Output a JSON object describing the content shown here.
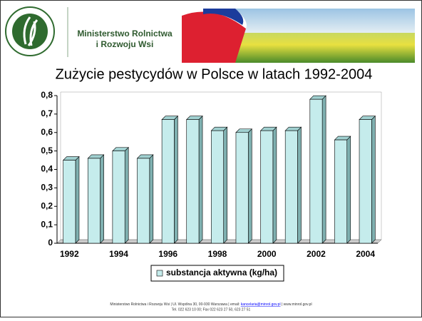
{
  "header": {
    "line1": "Ministerstwo Rolnictwa",
    "line2": "i Rozwoju Wsi"
  },
  "chart_data": {
    "type": "bar3d",
    "title": "Zużycie pestycydów w Polsce w latach 1992-2004",
    "categories": [
      "1992",
      null,
      "1994",
      null,
      "1996",
      null,
      "1998",
      null,
      "2000",
      null,
      "2002",
      null,
      "2004"
    ],
    "series": [
      {
        "name": "substancja aktywna (kg/ha)",
        "color": "#c5ecec",
        "values": [
          0.45,
          0.46,
          0.5,
          0.46,
          0.67,
          0.67,
          0.61,
          0.6,
          0.61,
          0.61,
          0.78,
          0.56,
          0.67
        ]
      }
    ],
    "ylim": [
      0,
      0.8
    ],
    "yticks": [
      0,
      {
        "value": 0.1,
        "label": "0,1"
      },
      {
        "value": 0.2,
        "label": "0,2"
      },
      {
        "value": 0.3,
        "label": "0,3"
      },
      {
        "value": 0.4,
        "label": "0,4"
      },
      {
        "value": 0.5,
        "label": "0,5"
      },
      {
        "value": 0.6,
        "label": "0,6"
      },
      {
        "value": 0.7,
        "label": "0,7"
      },
      {
        "value": 0.8,
        "label": "0,8"
      }
    ],
    "grid": false,
    "legend": "bottom"
  },
  "footer": {
    "line1a": "Ministerstwo Rolnictwa i Rozwoju Wsi | Ul. Wspólna 30, 00-930 Warszawa | email: ",
    "email": "kancelaria@minrol.gov.pl",
    "line1b": " | www.minrol.gov.pl",
    "line2": "Tel. 022 623 10 00; Fax 022 623 27 50, 623 27 51"
  }
}
